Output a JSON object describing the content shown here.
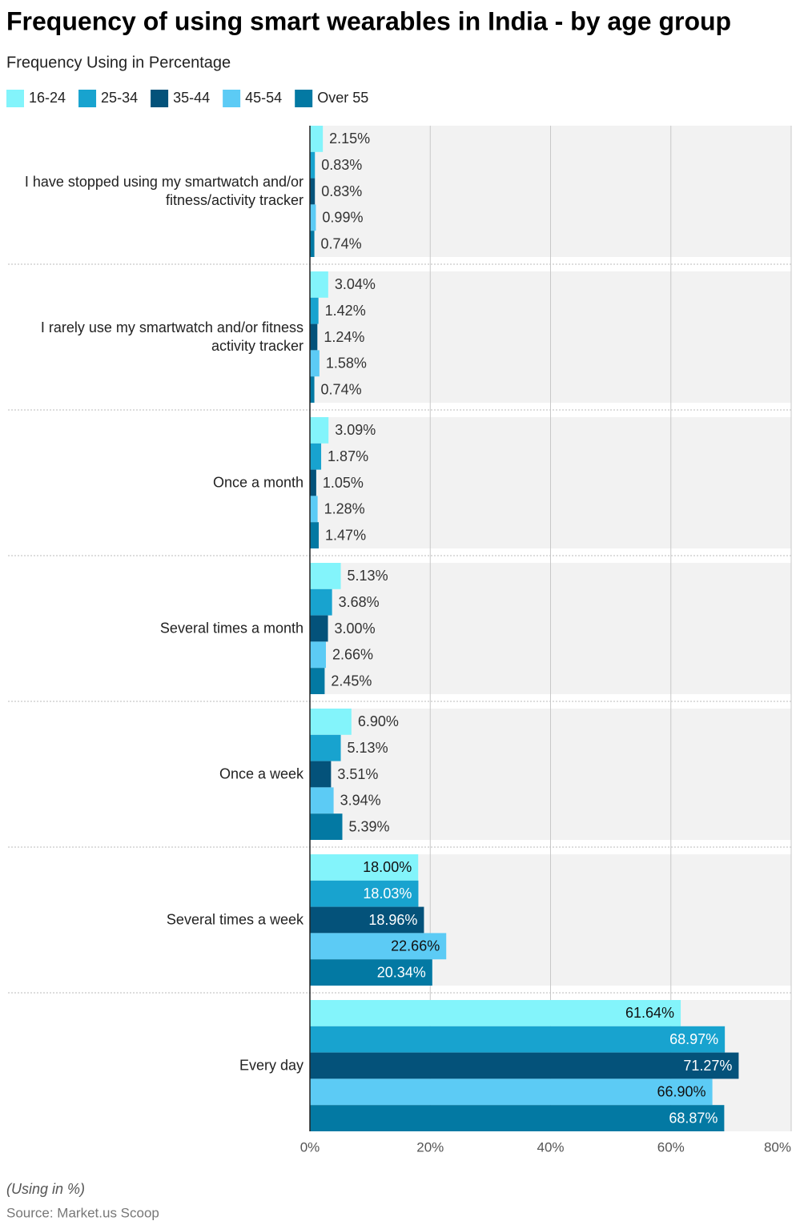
{
  "chart_data": {
    "type": "bar",
    "orientation": "horizontal",
    "title": "Frequency of using smart wearables in India - by age group",
    "subtitle": "Frequency Using in Percentage",
    "note": "(Using in %)",
    "source": "Source: Market.us Scoop",
    "categories": [
      "I have stopped using my smartwatch and/or fitness/activity tracker",
      "I rarely use my smartwatch and/or fitness activity tracker",
      "Once a month",
      "Several times a month",
      "Once a week",
      "Several times a week",
      "Every day"
    ],
    "series": [
      {
        "name": "16-24",
        "color": "#83f4fb",
        "values": [
          2.15,
          3.04,
          3.09,
          5.13,
          6.9,
          18.0,
          61.64
        ],
        "value_labels": [
          "2.15%",
          "3.04%",
          "3.09%",
          "5.13%",
          "6.90%",
          "18.00%",
          "61.64%"
        ]
      },
      {
        "name": "25-34",
        "color": "#18a3cf",
        "values": [
          0.83,
          1.42,
          1.87,
          3.68,
          5.13,
          18.03,
          68.97
        ],
        "value_labels": [
          "0.83%",
          "1.42%",
          "1.87%",
          "3.68%",
          "5.13%",
          "18.03%",
          "68.97%"
        ]
      },
      {
        "name": "35-44",
        "color": "#04527a",
        "values": [
          0.83,
          1.24,
          1.05,
          3.0,
          3.51,
          18.96,
          71.27
        ],
        "value_labels": [
          "0.83%",
          "1.24%",
          "1.05%",
          "3.00%",
          "3.51%",
          "18.96%",
          "71.27%"
        ]
      },
      {
        "name": "45-54",
        "color": "#5ccbf5",
        "values": [
          0.99,
          1.58,
          1.28,
          2.66,
          3.94,
          22.66,
          66.9
        ],
        "value_labels": [
          "0.99%",
          "1.58%",
          "1.28%",
          "2.66%",
          "3.94%",
          "22.66%",
          "66.90%"
        ]
      },
      {
        "name": "Over 55",
        "color": "#0379a3",
        "values": [
          0.74,
          0.74,
          1.47,
          2.45,
          5.39,
          20.34,
          68.87
        ],
        "value_labels": [
          "0.74%",
          "0.74%",
          "1.47%",
          "2.45%",
          "5.39%",
          "20.34%",
          "68.87%"
        ]
      }
    ],
    "xlim": [
      0,
      80
    ],
    "xticks": [
      {
        "value": 0,
        "label": "0%"
      },
      {
        "value": 20,
        "label": "20%"
      },
      {
        "value": 40,
        "label": "40%"
      },
      {
        "value": 60,
        "label": "60%"
      },
      {
        "value": 80,
        "label": "80%"
      }
    ],
    "grid": true
  }
}
